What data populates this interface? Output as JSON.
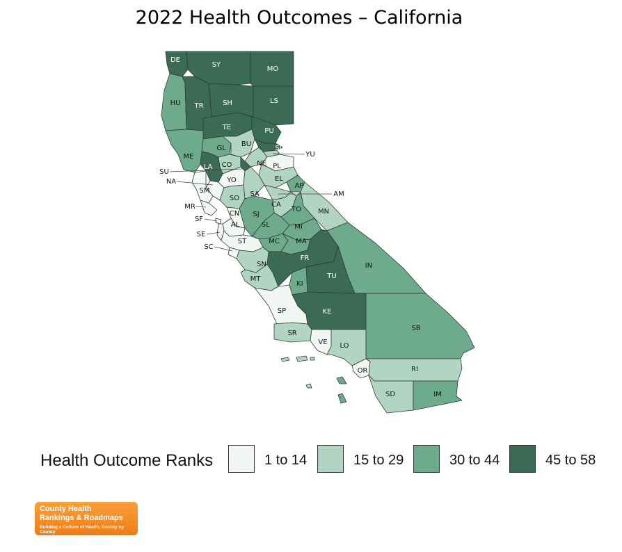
{
  "title": "2022 Health Outcomes – California",
  "legend": {
    "title": "Health Outcome Ranks",
    "classes": [
      {
        "label": "1 to 14",
        "color": "#f2f7f4"
      },
      {
        "label": "15 to 29",
        "color": "#b2d4c2"
      },
      {
        "label": "30 to 44",
        "color": "#6eab8d"
      },
      {
        "label": "45 to 58",
        "color": "#3c6b55"
      }
    ]
  },
  "counties": [
    {
      "code": "DE",
      "cls": 3
    },
    {
      "code": "SY",
      "cls": 3
    },
    {
      "code": "MO",
      "cls": 3
    },
    {
      "code": "HU",
      "cls": 2
    },
    {
      "code": "TR",
      "cls": 3
    },
    {
      "code": "SH",
      "cls": 3
    },
    {
      "code": "LS",
      "cls": 3
    },
    {
      "code": "TE",
      "cls": 3
    },
    {
      "code": "PU",
      "cls": 3
    },
    {
      "code": "ME",
      "cls": 2
    },
    {
      "code": "GL",
      "cls": 2
    },
    {
      "code": "BU",
      "cls": 1
    },
    {
      "code": "SI",
      "cls": 3
    },
    {
      "code": "YU",
      "cls": 1
    },
    {
      "code": "LA",
      "cls": 3
    },
    {
      "code": "CO",
      "cls": 1
    },
    {
      "code": "NE",
      "cls": 1
    },
    {
      "code": "PL",
      "cls": 0
    },
    {
      "code": "SU",
      "cls": 3
    },
    {
      "code": "NA",
      "cls": 0
    },
    {
      "code": "YO",
      "cls": 0
    },
    {
      "code": "EL",
      "cls": 1
    },
    {
      "code": "AP",
      "cls": 2
    },
    {
      "code": "SM",
      "cls": 0
    },
    {
      "code": "SA",
      "cls": 1
    },
    {
      "code": "AM",
      "cls": 1
    },
    {
      "code": "SO",
      "cls": 1
    },
    {
      "code": "CA",
      "cls": 1
    },
    {
      "code": "MN",
      "cls": 1
    },
    {
      "code": "MR",
      "cls": 0
    },
    {
      "code": "TO",
      "cls": 2
    },
    {
      "code": "SJ",
      "cls": 2
    },
    {
      "code": "CN",
      "cls": 0
    },
    {
      "code": "SF",
      "cls": 0
    },
    {
      "code": "AL",
      "cls": 0
    },
    {
      "code": "SL",
      "cls": 2
    },
    {
      "code": "MI",
      "cls": 2
    },
    {
      "code": "SE",
      "cls": 0
    },
    {
      "code": "MC",
      "cls": 2
    },
    {
      "code": "MA",
      "cls": 2
    },
    {
      "code": "ST",
      "cls": 0
    },
    {
      "code": "SC",
      "cls": 0
    },
    {
      "code": "FR",
      "cls": 3
    },
    {
      "code": "IN",
      "cls": 2
    },
    {
      "code": "SN",
      "cls": 1
    },
    {
      "code": "MT",
      "cls": 1
    },
    {
      "code": "KI",
      "cls": 2
    },
    {
      "code": "TU",
      "cls": 3
    },
    {
      "code": "SP",
      "cls": 0
    },
    {
      "code": "KE",
      "cls": 3
    },
    {
      "code": "SB",
      "cls": 2
    },
    {
      "code": "SR",
      "cls": 1
    },
    {
      "code": "VE",
      "cls": 0
    },
    {
      "code": "LO",
      "cls": 1
    },
    {
      "code": "OR",
      "cls": 0
    },
    {
      "code": "RI",
      "cls": 1
    },
    {
      "code": "SD",
      "cls": 1
    },
    {
      "code": "IM",
      "cls": 2
    }
  ],
  "logo": {
    "line1": "County Health",
    "line2": "Rankings & Roadmaps",
    "line3": "Building a Culture of Health, County by County"
  }
}
